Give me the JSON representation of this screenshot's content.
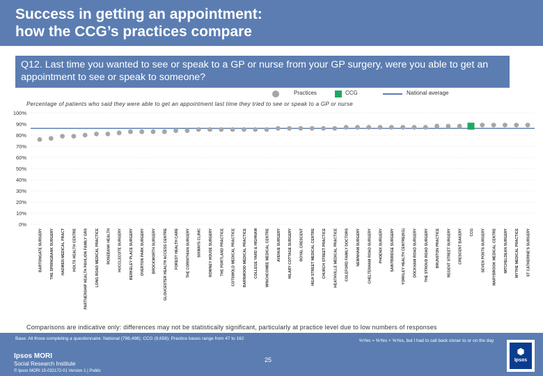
{
  "title_line1": "Success in getting an appointment:",
  "title_line2": "how the CCG’s practices compare",
  "question": "Q12. Last time you wanted to see or speak to a GP or nurse from your GP surgery, were you able to get an appointment to see or speak to someone?",
  "legend": {
    "practices": "Practices",
    "ccg": "CCG",
    "national": "National average"
  },
  "subtitle": "Percentage of patients who said they were able to get an appointment last time they tried to see or speak to a GP or nurse",
  "comparisons_note": "Comparisons are indicative only: differences may not be statistically significant, particularly at practice level due to low numbers of responses",
  "footer": {
    "base": "Base: All those completing a questionnaire: National (798,498); CCG (9,658); Practice bases range from 47 to 162",
    "yes_definition": "%Yes = %Yes + %Yes, but I had to call back closer to or on the day",
    "logo_name": "Ipsos MORI",
    "logo_sub": "Social Research Institute",
    "copyright": "© Ipsos MORI    15-032172-01 Version 1 | Public",
    "page_number": "25"
  },
  "nhs": {
    "mark": "⬢",
    "label": "Ipsos"
  },
  "colors": {
    "band": "#5b7db1",
    "practice": "#a6a6a6",
    "ccg": "#1ea862",
    "national": "#5b7db1",
    "axis_text": "#333333"
  },
  "chart_data": {
    "type": "scatter",
    "title": "Percentage of patients who said they were able to get an appointment last time they tried to see or speak to a GP or nurse",
    "ylim": [
      0,
      100
    ],
    "y_ticks": [
      "0%",
      "10%",
      "20%",
      "30%",
      "40%",
      "50%",
      "60%",
      "70%",
      "80%",
      "90%",
      "100%"
    ],
    "national_average": 86,
    "categories": [
      "BARTONGATE SURGERY",
      "THE SPRINGBANK SURGERY",
      "HADWEN MEDICAL PRACT",
      "HOLTS HEALTH CENTRE",
      "PARTNERSHIP HEALTH PAVILION FAMILY GRS",
      "LONG ROAD MEDICAL PRACTICE",
      "ROSEBANK HEALTH",
      "HUCCLECOTE SURGERY",
      "BERKELEY PLACE SURGERY",
      "OVERTON PARK SURGERY",
      "BROCKWORTH SURGERY",
      "GLOUCESTER HEALTH ACCESS CENTRE",
      "FOREST HEALTH CARE",
      "THE CORINTHIAN SURGERY",
      "SIXWAYS CLINIC",
      "ROWNEY HOUSE SURGERY",
      "THE PORTLAND PRACTICE",
      "COTSWOLD MEDICAL PRACTICE",
      "BARNWOOD MEDICAL PRACTICE",
      "COLLEGE YARD & HIGHNAM",
      "WINCHCOMBE MEDICAL CENTRE",
      "AVENUE SURGERY",
      "HILARY COTTAGE SURGERY",
      "ROYAL CRESCENT",
      "HIGH STREET MEDICAL CENTRE",
      "CHURCH STREET PRACTICE",
      "HEATHVILLE MEDICAL PRACTICE",
      "COLEFORD FAMILY DOCTORS",
      "NEWNHAM SURGERY",
      "CHELTENHAM ROAD SURGERY",
      "PHOENIX SURGERY",
      "SAINTBRIDGE SURGERY",
      "YORKLEY HEALTH CENTRE(KG)",
      "DOCKHAM ROAD SURGERY",
      "THE STROUD ROAD SURGERY",
      "BRUNSTON PRACTICE",
      "REGENT STREET SURGERY",
      "CRESCENT BAKERY",
      "CCG",
      "SEVEN POSTS SURGERY",
      "MARYBROOK MEDICAL CENTRE",
      "MITCHELDEAN SURGERY",
      "MYTHE MEDICAL PRACTICE",
      "ST CATHERINE'S SURGERY"
    ],
    "values": [
      76,
      77,
      79,
      79,
      80,
      81,
      81,
      82,
      83,
      83,
      83,
      83,
      84,
      84,
      85,
      85,
      85,
      85,
      85,
      85,
      85,
      86,
      86,
      86,
      86,
      86,
      86,
      87,
      87,
      87,
      87,
      87,
      87,
      87,
      87,
      88,
      88,
      88,
      88,
      89,
      89,
      89,
      89,
      89
    ],
    "ccg_index": 38,
    "xlabel": "",
    "ylabel": ""
  }
}
